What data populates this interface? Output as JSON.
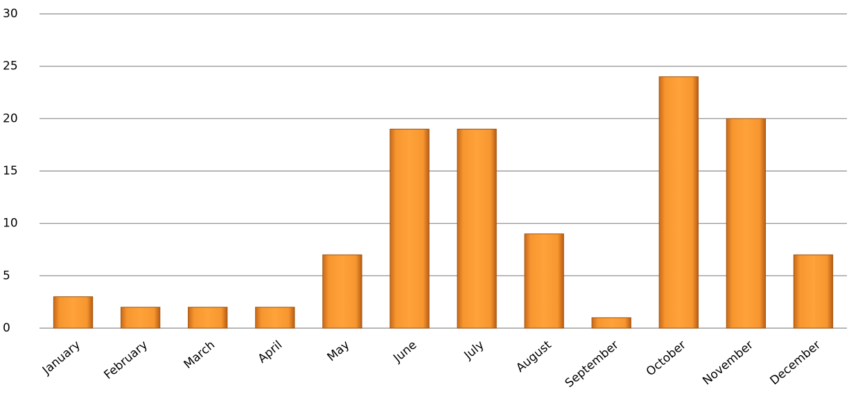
{
  "chart_data": {
    "type": "bar",
    "categories": [
      "January",
      "February",
      "March",
      "April",
      "May",
      "June",
      "July",
      "August",
      "September",
      "October",
      "November",
      "December"
    ],
    "values": [
      3,
      2,
      2,
      2,
      7,
      19,
      19,
      9,
      1,
      24,
      20,
      7
    ],
    "color": "#f28e2b",
    "ylim": [
      0,
      30
    ],
    "yticks": [
      0,
      5,
      10,
      15,
      20,
      25,
      30
    ],
    "grid": true
  }
}
